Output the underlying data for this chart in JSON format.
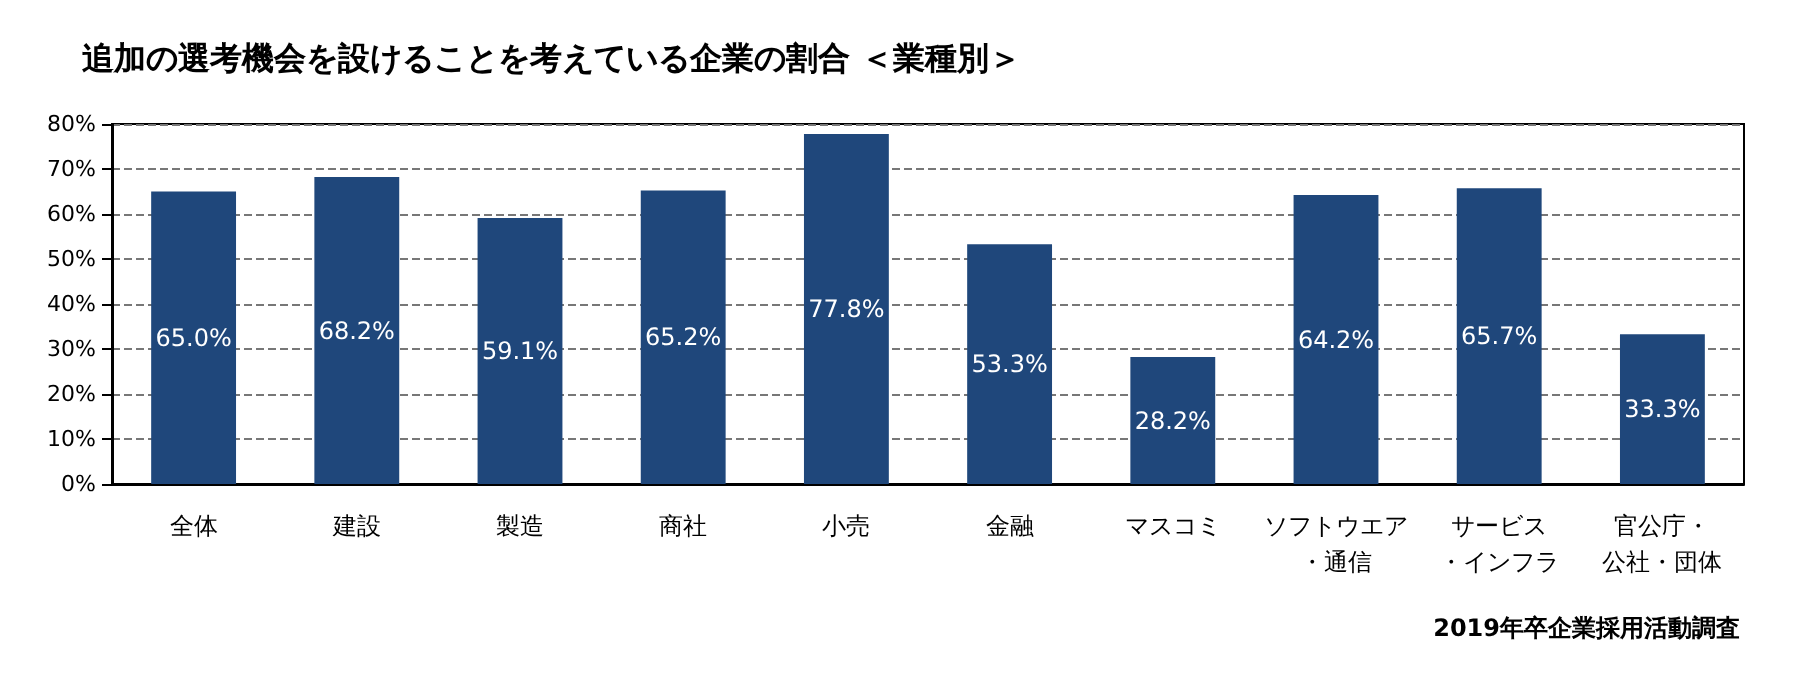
{
  "chart_data": {
    "type": "bar",
    "title": "追加の選考機会を設けることを考えている企業の割合 ＜業種別＞",
    "categories": [
      "全体",
      "建設",
      "製造",
      "商社",
      "小売",
      "金融",
      "マスコミ",
      "ソフトウエア・通信",
      "サービス・インフラ",
      "官公庁・公社・団体"
    ],
    "values": [
      65.0,
      68.2,
      59.1,
      65.2,
      77.8,
      53.3,
      28.2,
      64.2,
      65.7,
      33.3
    ],
    "value_labels": [
      "65.0%",
      "68.2%",
      "59.1%",
      "65.2%",
      "77.8%",
      "53.3%",
      "28.2%",
      "64.2%",
      "65.7%",
      "33.3%"
    ],
    "color": "#1f477b",
    "ylim": [
      0,
      80
    ],
    "yticks": [
      {
        "value": 0,
        "label": "0%"
      },
      {
        "value": 10,
        "label": "10%"
      },
      {
        "value": 20,
        "label": "20%"
      },
      {
        "value": 30,
        "label": "30%"
      },
      {
        "value": 40,
        "label": "40%"
      },
      {
        "value": 50,
        "label": "50%"
      },
      {
        "value": 60,
        "label": "60%"
      },
      {
        "value": 70,
        "label": "70%"
      },
      {
        "value": 80,
        "label": "80%"
      }
    ],
    "grid": "y",
    "annotations": [
      "2019年卒企業採用活動調査"
    ]
  }
}
